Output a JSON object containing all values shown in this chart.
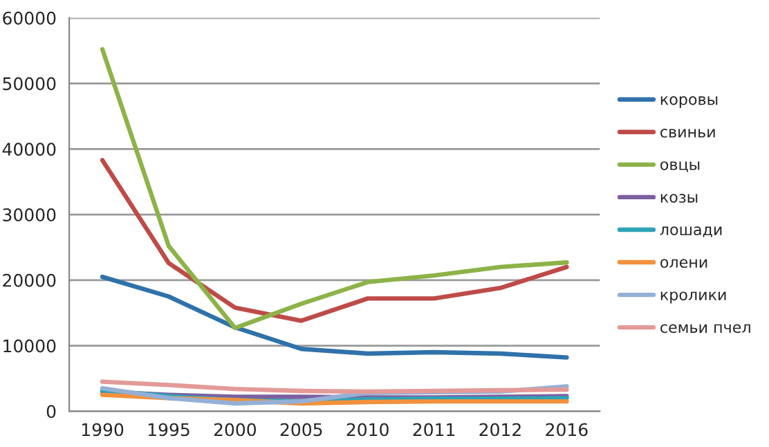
{
  "chart_data": {
    "type": "line",
    "categories": [
      "1990",
      "1995",
      "2000",
      "2005",
      "2010",
      "2011",
      "2012",
      "2016"
    ],
    "series": [
      {
        "name": "коровы",
        "color": "#2f72aa",
        "values": [
          20500,
          17500,
          12800,
          9500,
          8800,
          9000,
          8800,
          8200
        ]
      },
      {
        "name": "свиньи",
        "color": "#be4b48",
        "values": [
          38300,
          22600,
          15800,
          13800,
          17200,
          17200,
          18800,
          22000
        ]
      },
      {
        "name": "овцы",
        "color": "#8db348",
        "values": [
          55200,
          25200,
          12700,
          16400,
          19700,
          20700,
          22000,
          22700
        ]
      },
      {
        "name": "козы",
        "color": "#7d5fa0",
        "values": [
          3000,
          2500,
          2200,
          2200,
          2100,
          2100,
          2200,
          2300
        ]
      },
      {
        "name": "лошади",
        "color": "#2ea3b8",
        "values": [
          3200,
          2300,
          1700,
          1500,
          1800,
          1900,
          1900,
          2000
        ]
      },
      {
        "name": "олени",
        "color": "#f2913d",
        "values": [
          2500,
          2000,
          1700,
          1200,
          1400,
          1500,
          1500,
          1500
        ]
      },
      {
        "name": "кролики",
        "color": "#94b0d6",
        "values": [
          3500,
          2000,
          1200,
          1500,
          2800,
          2900,
          3000,
          3800
        ]
      },
      {
        "name": "семьи пчел",
        "color": "#e39a98",
        "values": [
          4500,
          4000,
          3400,
          3100,
          3000,
          3100,
          3200,
          3300
        ]
      }
    ],
    "ylim": [
      0,
      60000
    ],
    "yticks": [
      0,
      10000,
      20000,
      30000,
      40000,
      50000,
      60000
    ],
    "grid": "y",
    "legend": "right",
    "marker": "none",
    "line_style": "solid"
  }
}
